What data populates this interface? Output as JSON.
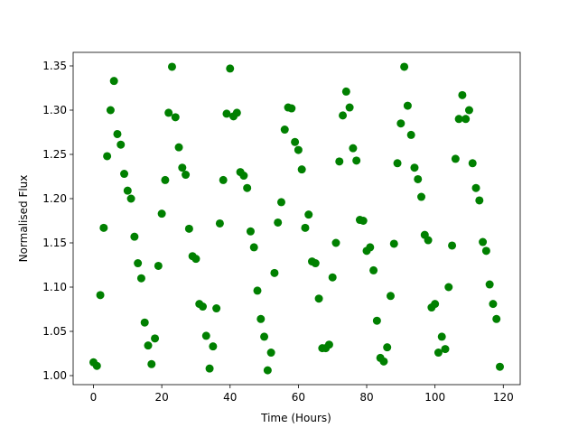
{
  "chart_data": {
    "type": "scatter",
    "xlabel": "Time (Hours)",
    "ylabel": "Normalised Flux",
    "color": "#008000",
    "xlim": [
      -5.95,
      124.95
    ],
    "ylim": [
      0.9898,
      1.3653
    ],
    "xticks": [
      0,
      20,
      40,
      60,
      80,
      100,
      120
    ],
    "yticks": [
      {
        "value": 1.0,
        "label": "1.00"
      },
      1.05,
      {
        "value": 1.1,
        "label": "1.10"
      },
      1.15,
      {
        "value": 1.2,
        "label": "1.20"
      },
      1.25,
      {
        "value": 1.3,
        "label": "1.30"
      },
      1.35
    ],
    "x": [
      0,
      1,
      2,
      3,
      4,
      5,
      6,
      7,
      8,
      9,
      10,
      11,
      12,
      13,
      14,
      15,
      16,
      17,
      18,
      19,
      20,
      21,
      22,
      23,
      24,
      25,
      26,
      27,
      28,
      29,
      30,
      31,
      32,
      33,
      34,
      35,
      36,
      37,
      38,
      39,
      40,
      41,
      42,
      43,
      44,
      45,
      46,
      47,
      48,
      49,
      50,
      51,
      52,
      53,
      54,
      55,
      56,
      57,
      58,
      59,
      60,
      61,
      62,
      63,
      64,
      65,
      66,
      67,
      68,
      69,
      70,
      71,
      72,
      73,
      74,
      75,
      76,
      77,
      78,
      79,
      80,
      81,
      82,
      83,
      84,
      85,
      86,
      87,
      88,
      89,
      90,
      91,
      92,
      93,
      94,
      95,
      96,
      97,
      98,
      99,
      100,
      101,
      102,
      103,
      104,
      105,
      106,
      107,
      108,
      109,
      110,
      111,
      112,
      113,
      114,
      115,
      116,
      117,
      118,
      119
    ],
    "values": [
      1.015,
      1.011,
      1.091,
      1.167,
      1.248,
      1.3,
      1.333,
      1.273,
      1.261,
      1.228,
      1.209,
      1.2,
      1.157,
      1.127,
      1.11,
      1.06,
      1.034,
      1.013,
      1.042,
      1.124,
      1.183,
      1.221,
      1.297,
      1.349,
      1.292,
      1.258,
      1.235,
      1.227,
      1.166,
      1.135,
      1.132,
      1.081,
      1.078,
      1.045,
      1.008,
      1.033,
      1.076,
      1.172,
      1.221,
      1.296,
      1.347,
      1.293,
      1.297,
      1.23,
      1.226,
      1.212,
      1.163,
      1.145,
      1.096,
      1.064,
      1.044,
      1.006,
      1.026,
      1.116,
      1.173,
      1.196,
      1.278,
      1.303,
      1.302,
      1.264,
      1.255,
      1.233,
      1.167,
      1.182,
      1.129,
      1.127,
      1.087,
      1.031,
      1.031,
      1.035,
      1.111,
      1.15,
      1.242,
      1.294,
      1.321,
      1.303,
      1.257,
      1.243,
      1.176,
      1.175,
      1.141,
      1.145,
      1.119,
      1.062,
      1.02,
      1.016,
      1.032,
      1.09,
      1.149,
      1.24,
      1.285,
      1.349,
      1.305,
      1.272,
      1.235,
      1.222,
      1.202,
      1.159,
      1.153,
      1.077,
      1.081,
      1.026,
      1.044,
      1.03,
      1.1,
      1.147,
      1.245,
      1.29,
      1.317,
      1.29,
      1.3,
      1.24,
      1.212,
      1.198,
      1.151,
      1.141,
      1.103,
      1.081,
      1.064,
      1.01
    ]
  }
}
